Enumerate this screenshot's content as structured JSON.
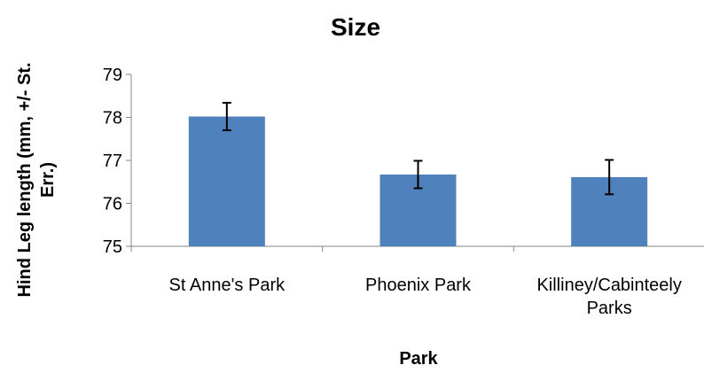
{
  "chart_data": {
    "type": "bar",
    "title": "Size",
    "xlabel": "Park",
    "ylabel": "Hind Leg length (mm, +/- St. Err.)",
    "ylabel_lines": [
      "Hind Leg length (mm, +/- St.",
      "Err.)"
    ],
    "categories": [
      "St Anne's Park",
      "Phoenix Park",
      "Killiney/Cabinteely Parks"
    ],
    "category_lines": [
      [
        "St Anne's Park"
      ],
      [
        "Phoenix Park"
      ],
      [
        "Killiney/Cabinteely",
        "Parks"
      ]
    ],
    "values": [
      78.02,
      76.67,
      76.61
    ],
    "errors": [
      0.32,
      0.32,
      0.4
    ],
    "ylim": [
      75,
      79
    ],
    "yticks": [
      "75",
      "76",
      "77",
      "78",
      "79"
    ],
    "bar_color": "#4f81bd",
    "grid": false,
    "legend": "none"
  }
}
